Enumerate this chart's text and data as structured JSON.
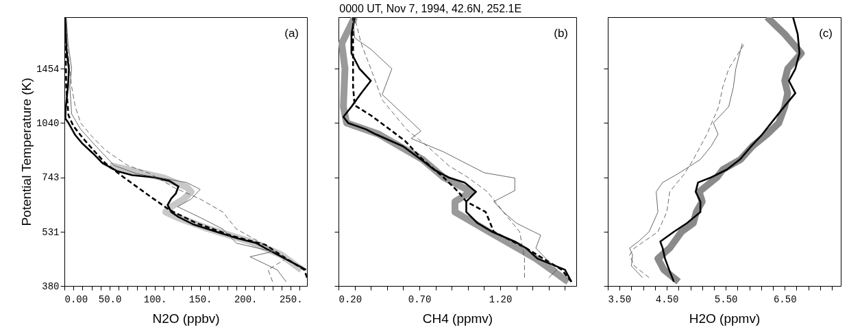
{
  "chart_data": [
    {
      "type": "line",
      "xlabel": "N2O (ppbv)",
      "ylabel": "Potential Temperature (K)",
      "annotations": [
        "(a)"
      ],
      "log": "y",
      "xlim": [
        0,
        268
      ],
      "ylim": [
        380,
        2000
      ],
      "xticks": [
        {
          "value": 0,
          "label": "0.00"
        },
        {
          "value": 10,
          "label": null
        },
        {
          "value": 20,
          "label": null
        },
        {
          "value": 30,
          "label": null
        },
        {
          "value": 40,
          "label": null
        },
        {
          "value": 50,
          "label": "50.0"
        },
        {
          "value": 60,
          "label": null
        },
        {
          "value": 70,
          "label": null
        },
        {
          "value": 80,
          "label": null
        },
        {
          "value": 90,
          "label": null
        },
        {
          "value": 100,
          "label": "100."
        },
        {
          "value": 110,
          "label": null
        },
        {
          "value": 120,
          "label": null
        },
        {
          "value": 130,
          "label": null
        },
        {
          "value": 140,
          "label": null
        },
        {
          "value": 150,
          "label": "150."
        },
        {
          "value": 160,
          "label": null
        },
        {
          "value": 170,
          "label": null
        },
        {
          "value": 180,
          "label": null
        },
        {
          "value": 190,
          "label": null
        },
        {
          "value": 200,
          "label": "200."
        },
        {
          "value": 210,
          "label": null
        },
        {
          "value": 220,
          "label": null
        },
        {
          "value": 230,
          "label": null
        },
        {
          "value": 240,
          "label": null
        },
        {
          "value": 250,
          "label": "250."
        },
        {
          "value": 260,
          "label": null
        }
      ],
      "yticks": [
        380,
        531,
        743,
        1040,
        1454
      ],
      "series": [
        {
          "color": "#c8c8c8",
          "line_style": "solid",
          "x": [
            262,
            240,
            205,
            160,
            125,
            112,
            118,
            132,
            140,
            135,
            110,
            50
          ],
          "values": [
            420,
            460,
            500,
            540,
            580,
            600,
            620,
            650,
            680,
            700,
            740,
            800
          ]
        },
        {
          "color": "#000000",
          "line_style": "solid",
          "x": [
            267,
            239,
            224,
            212,
            191,
            166,
            143,
            126,
            118,
            114,
            118,
            123,
            126,
            116,
            100,
            75,
            58,
            42,
            32,
            20,
            12,
            4.5,
            1,
            1.5,
            4,
            5,
            2.5,
            1,
            1
          ],
          "values": [
            420,
            456,
            477,
            495,
            510,
            533,
            555,
            582,
            600,
            627,
            652,
            672,
            703,
            727,
            743,
            753,
            773,
            812,
            860,
            915,
            965,
            1040,
            1070,
            1140,
            1310,
            1450,
            1620,
            1950,
            2000
          ]
        },
        {
          "color": "#000000",
          "line_style": "dashed",
          "x": [
            268,
            265,
            245,
            222,
            186,
            146,
            116,
            95,
            65,
            45,
            32,
            20,
            10,
            4.5,
            2,
            1
          ],
          "values": [
            400,
            420,
            450,
            490,
            517,
            560,
            608,
            660,
            745,
            812,
            880,
            950,
            1020,
            1090,
            1300,
            2000
          ]
        },
        {
          "color": "#555555",
          "line_style": "solid",
          "x": [
            245,
            235,
            205,
            230,
            190,
            175,
            150,
            125,
            140,
            150,
            135,
            80,
            55,
            35,
            18,
            8,
            6,
            8,
            4,
            2
          ],
          "values": [
            390,
            420,
            455,
            470,
            495,
            540,
            580,
            620,
            650,
            690,
            720,
            760,
            800,
            900,
            1000,
            1100,
            1300,
            1454,
            1700,
            2000
          ]
        },
        {
          "color": "#555555",
          "line_style": "dashed",
          "x": [
            230,
            225,
            245,
            215,
            190,
            175,
            150,
            120,
            95,
            70,
            45,
            30,
            18,
            12,
            8,
            6,
            3,
            2
          ],
          "values": [
            390,
            420,
            450,
            500,
            540,
            600,
            650,
            700,
            760,
            800,
            880,
            960,
            1040,
            1150,
            1300,
            1454,
            1700,
            2000
          ]
        }
      ]
    },
    {
      "type": "line",
      "title": "0000 UT, Nov 7, 1994, 42.6N, 252.1E",
      "xlabel": "CH4 (ppmv)",
      "annotations": [
        "(b)"
      ],
      "log": "y",
      "tick_labels": "x",
      "xlim": [
        0.2,
        1.67
      ],
      "ylim": [
        380,
        2000
      ],
      "xticks": [
        {
          "value": 0.2,
          "label": "0.20"
        },
        {
          "value": 0.3,
          "label": null
        },
        {
          "value": 0.4,
          "label": null
        },
        {
          "value": 0.5,
          "label": null
        },
        {
          "value": 0.6,
          "label": null
        },
        {
          "value": 0.7,
          "label": "0.70"
        },
        {
          "value": 0.8,
          "label": null
        },
        {
          "value": 0.9,
          "label": null
        },
        {
          "value": 1.0,
          "label": null
        },
        {
          "value": 1.1,
          "label": null
        },
        {
          "value": 1.2,
          "label": "1.20"
        },
        {
          "value": 1.3,
          "label": null
        },
        {
          "value": 1.4,
          "label": null
        },
        {
          "value": 1.5,
          "label": null
        },
        {
          "value": 1.6,
          "label": null
        }
      ],
      "yticks": [
        380,
        531,
        743,
        1040,
        1454
      ],
      "series": [
        {
          "color": "#9a9a9a",
          "line_style": "solid",
          "x": [
            1.62,
            1.42,
            1.13,
            0.92,
            0.92,
            1.02,
            0.85,
            0.72,
            0.45,
            0.25,
            0.23,
            0.24,
            0.22,
            0.3
          ],
          "values": [
            390,
            450,
            531,
            600,
            640,
            680,
            743,
            830,
            970,
            1040,
            1150,
            1454,
            1700,
            2000
          ]
        },
        {
          "color": "#000000",
          "line_style": "solid",
          "x": [
            1.64,
            1.6,
            1.43,
            1.36,
            1.29,
            1.15,
            1.06,
            0.99,
            0.99,
            1.05,
            0.98,
            0.88,
            0.79,
            0.71,
            0.6,
            0.43,
            0.37,
            0.26,
            0.23,
            0.28,
            0.34,
            0.4,
            0.33,
            0.28,
            0.28,
            0.3
          ],
          "values": [
            390,
            420,
            450,
            480,
            500,
            531,
            560,
            600,
            640,
            680,
            720,
            743,
            780,
            830,
            900,
            970,
            1000,
            1040,
            1080,
            1150,
            1250,
            1350,
            1454,
            1600,
            1800,
            2000
          ]
        },
        {
          "color": "#000000",
          "line_style": "dashed",
          "x": [
            1.64,
            1.58,
            1.36,
            1.16,
            1.11,
            0.99,
            0.94,
            0.85,
            0.72,
            0.61,
            0.53,
            0.4,
            0.3,
            0.29,
            0.29,
            0.29
          ],
          "values": [
            390,
            420,
            480,
            531,
            600,
            640,
            680,
            743,
            830,
            932,
            990,
            1090,
            1160,
            1300,
            1600,
            2000
          ]
        },
        {
          "color": "#555555",
          "line_style": "solid",
          "x": [
            1.5,
            1.55,
            1.42,
            1.45,
            1.3,
            1.22,
            1.16,
            1.29,
            1.29,
            1.1,
            0.85,
            0.65,
            0.71,
            0.47,
            0.53,
            0.4,
            0.3,
            0.29
          ],
          "values": [
            400,
            420,
            480,
            520,
            560,
            600,
            640,
            685,
            740,
            765,
            870,
            945,
            990,
            1240,
            1454,
            1640,
            1760,
            2000
          ]
        },
        {
          "color": "#555555",
          "line_style": "dashed",
          "x": [
            1.35,
            1.35,
            1.32,
            1.22,
            1.12,
            1.0,
            0.88,
            0.75,
            0.62,
            0.47,
            0.4,
            0.34,
            0.3
          ],
          "values": [
            400,
            450,
            531,
            600,
            680,
            743,
            800,
            900,
            1000,
            1200,
            1454,
            1700,
            2000
          ]
        }
      ]
    },
    {
      "type": "line",
      "xlabel": "H2O (ppmv)",
      "annotations": [
        "(c)"
      ],
      "log": "y",
      "tick_labels": "x",
      "xlim": [
        3.5,
        7.45
      ],
      "ylim": [
        380,
        2000
      ],
      "xticks": [
        {
          "value": 3.5,
          "label": "3.50"
        },
        {
          "value": 3.7,
          "label": null
        },
        {
          "value": 3.9,
          "label": null
        },
        {
          "value": 4.1,
          "label": null
        },
        {
          "value": 4.3,
          "label": null
        },
        {
          "value": 4.5,
          "label": "4.50"
        },
        {
          "value": 4.7,
          "label": null
        },
        {
          "value": 4.9,
          "label": null
        },
        {
          "value": 5.1,
          "label": null
        },
        {
          "value": 5.3,
          "label": null
        },
        {
          "value": 5.5,
          "label": "5.50"
        },
        {
          "value": 5.7,
          "label": null
        },
        {
          "value": 5.9,
          "label": null
        },
        {
          "value": 6.1,
          "label": null
        },
        {
          "value": 6.3,
          "label": null
        },
        {
          "value": 6.5,
          "label": "6.50"
        },
        {
          "value": 6.7,
          "label": null
        },
        {
          "value": 6.9,
          "label": null
        },
        {
          "value": 7.1,
          "label": null
        },
        {
          "value": 7.3,
          "label": null
        }
      ],
      "yticks": [
        380,
        531,
        743,
        1040,
        1454
      ],
      "series": [
        {
          "color": "#8a8a8a",
          "line_style": "solid",
          "x": [
            4.7,
            4.45,
            4.35,
            4.55,
            4.75,
            4.95,
            5.0,
            5.1,
            5.05,
            5.35,
            5.45,
            5.75,
            5.95,
            6.2,
            6.4,
            6.5,
            6.55,
            6.5,
            6.55,
            6.78,
            6.5,
            6.2
          ],
          "values": [
            390,
            420,
            450,
            480,
            531,
            560,
            600,
            640,
            680,
            743,
            780,
            830,
            900,
            970,
            1040,
            1150,
            1250,
            1350,
            1454,
            1600,
            1800,
            2000
          ]
        },
        {
          "color": "#000000",
          "line_style": "solid",
          "x": [
            4.62,
            4.54,
            4.47,
            4.43,
            4.39,
            4.62,
            4.84,
            5.07,
            5.07,
            4.99,
            5.03,
            5.25,
            5.52,
            5.74,
            5.93,
            6.12,
            6.27,
            6.49,
            6.68,
            6.57,
            6.68,
            6.75,
            6.72,
            6.64
          ],
          "values": [
            390,
            420,
            450,
            480,
            500,
            531,
            560,
            600,
            640,
            680,
            720,
            743,
            780,
            830,
            900,
            970,
            1040,
            1150,
            1250,
            1350,
            1454,
            1600,
            1800,
            2000
          ]
        },
        {
          "color": "#555555",
          "line_style": "solid",
          "x": [
            4.09,
            3.9,
            3.92,
            3.87,
            4.02,
            4.2,
            4.35,
            4.32,
            4.43,
            4.69,
            5.07,
            5.25,
            5.37,
            5.29,
            5.55,
            5.63,
            5.67,
            5.78
          ],
          "values": [
            400,
            430,
            460,
            480,
            500,
            531,
            600,
            680,
            720,
            760,
            830,
            900,
            970,
            1040,
            1150,
            1300,
            1454,
            1700
          ]
        },
        {
          "color": "#555555",
          "line_style": "dashed",
          "x": [
            4.2,
            3.95,
            3.87,
            3.95,
            4.35,
            4.5,
            4.55,
            4.8,
            4.95,
            5.18,
            5.38,
            5.45,
            5.55,
            5.82
          ],
          "values": [
            400,
            430,
            460,
            480,
            531,
            600,
            680,
            760,
            830,
            970,
            1150,
            1300,
            1454,
            1700
          ]
        }
      ]
    }
  ]
}
